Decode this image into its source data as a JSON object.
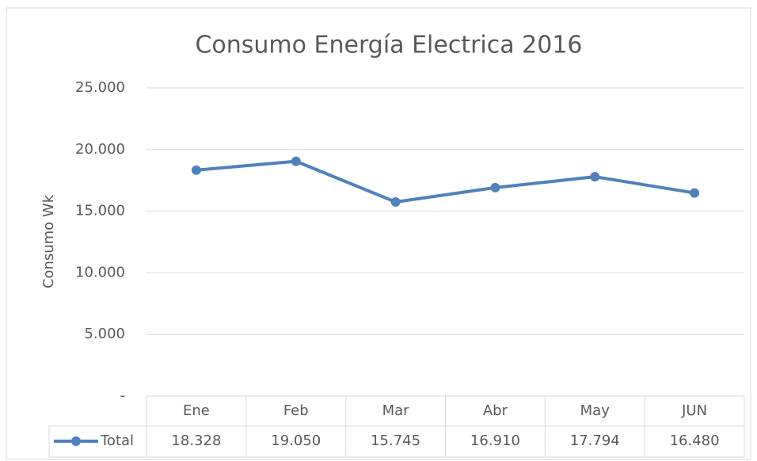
{
  "chart_data": {
    "type": "line",
    "title": "Consumo Energía Electrica 2016",
    "y_label": "Consumo Wk",
    "categories": [
      "Ene",
      "Feb",
      "Mar",
      "Abr",
      "May",
      "JUN"
    ],
    "series": [
      {
        "name": "Total",
        "color": "#4f81bd",
        "values": [
          18328,
          19050,
          15745,
          16910,
          17794,
          16480
        ],
        "value_labels": [
          "18.328",
          "19.050",
          "15.745",
          "16.910",
          "17.794",
          "16.480"
        ]
      }
    ],
    "ylim": [
      0,
      25000
    ],
    "yticks": [
      {
        "value": 0,
        "label": "-"
      },
      {
        "value": 5000,
        "label": "5.000"
      },
      {
        "value": 10000,
        "label": "10.000"
      },
      {
        "value": 15000,
        "label": "15.000"
      },
      {
        "value": 20000,
        "label": "20.000"
      },
      {
        "value": 25000,
        "label": "25.000"
      }
    ],
    "grid": true,
    "data_table": true
  }
}
